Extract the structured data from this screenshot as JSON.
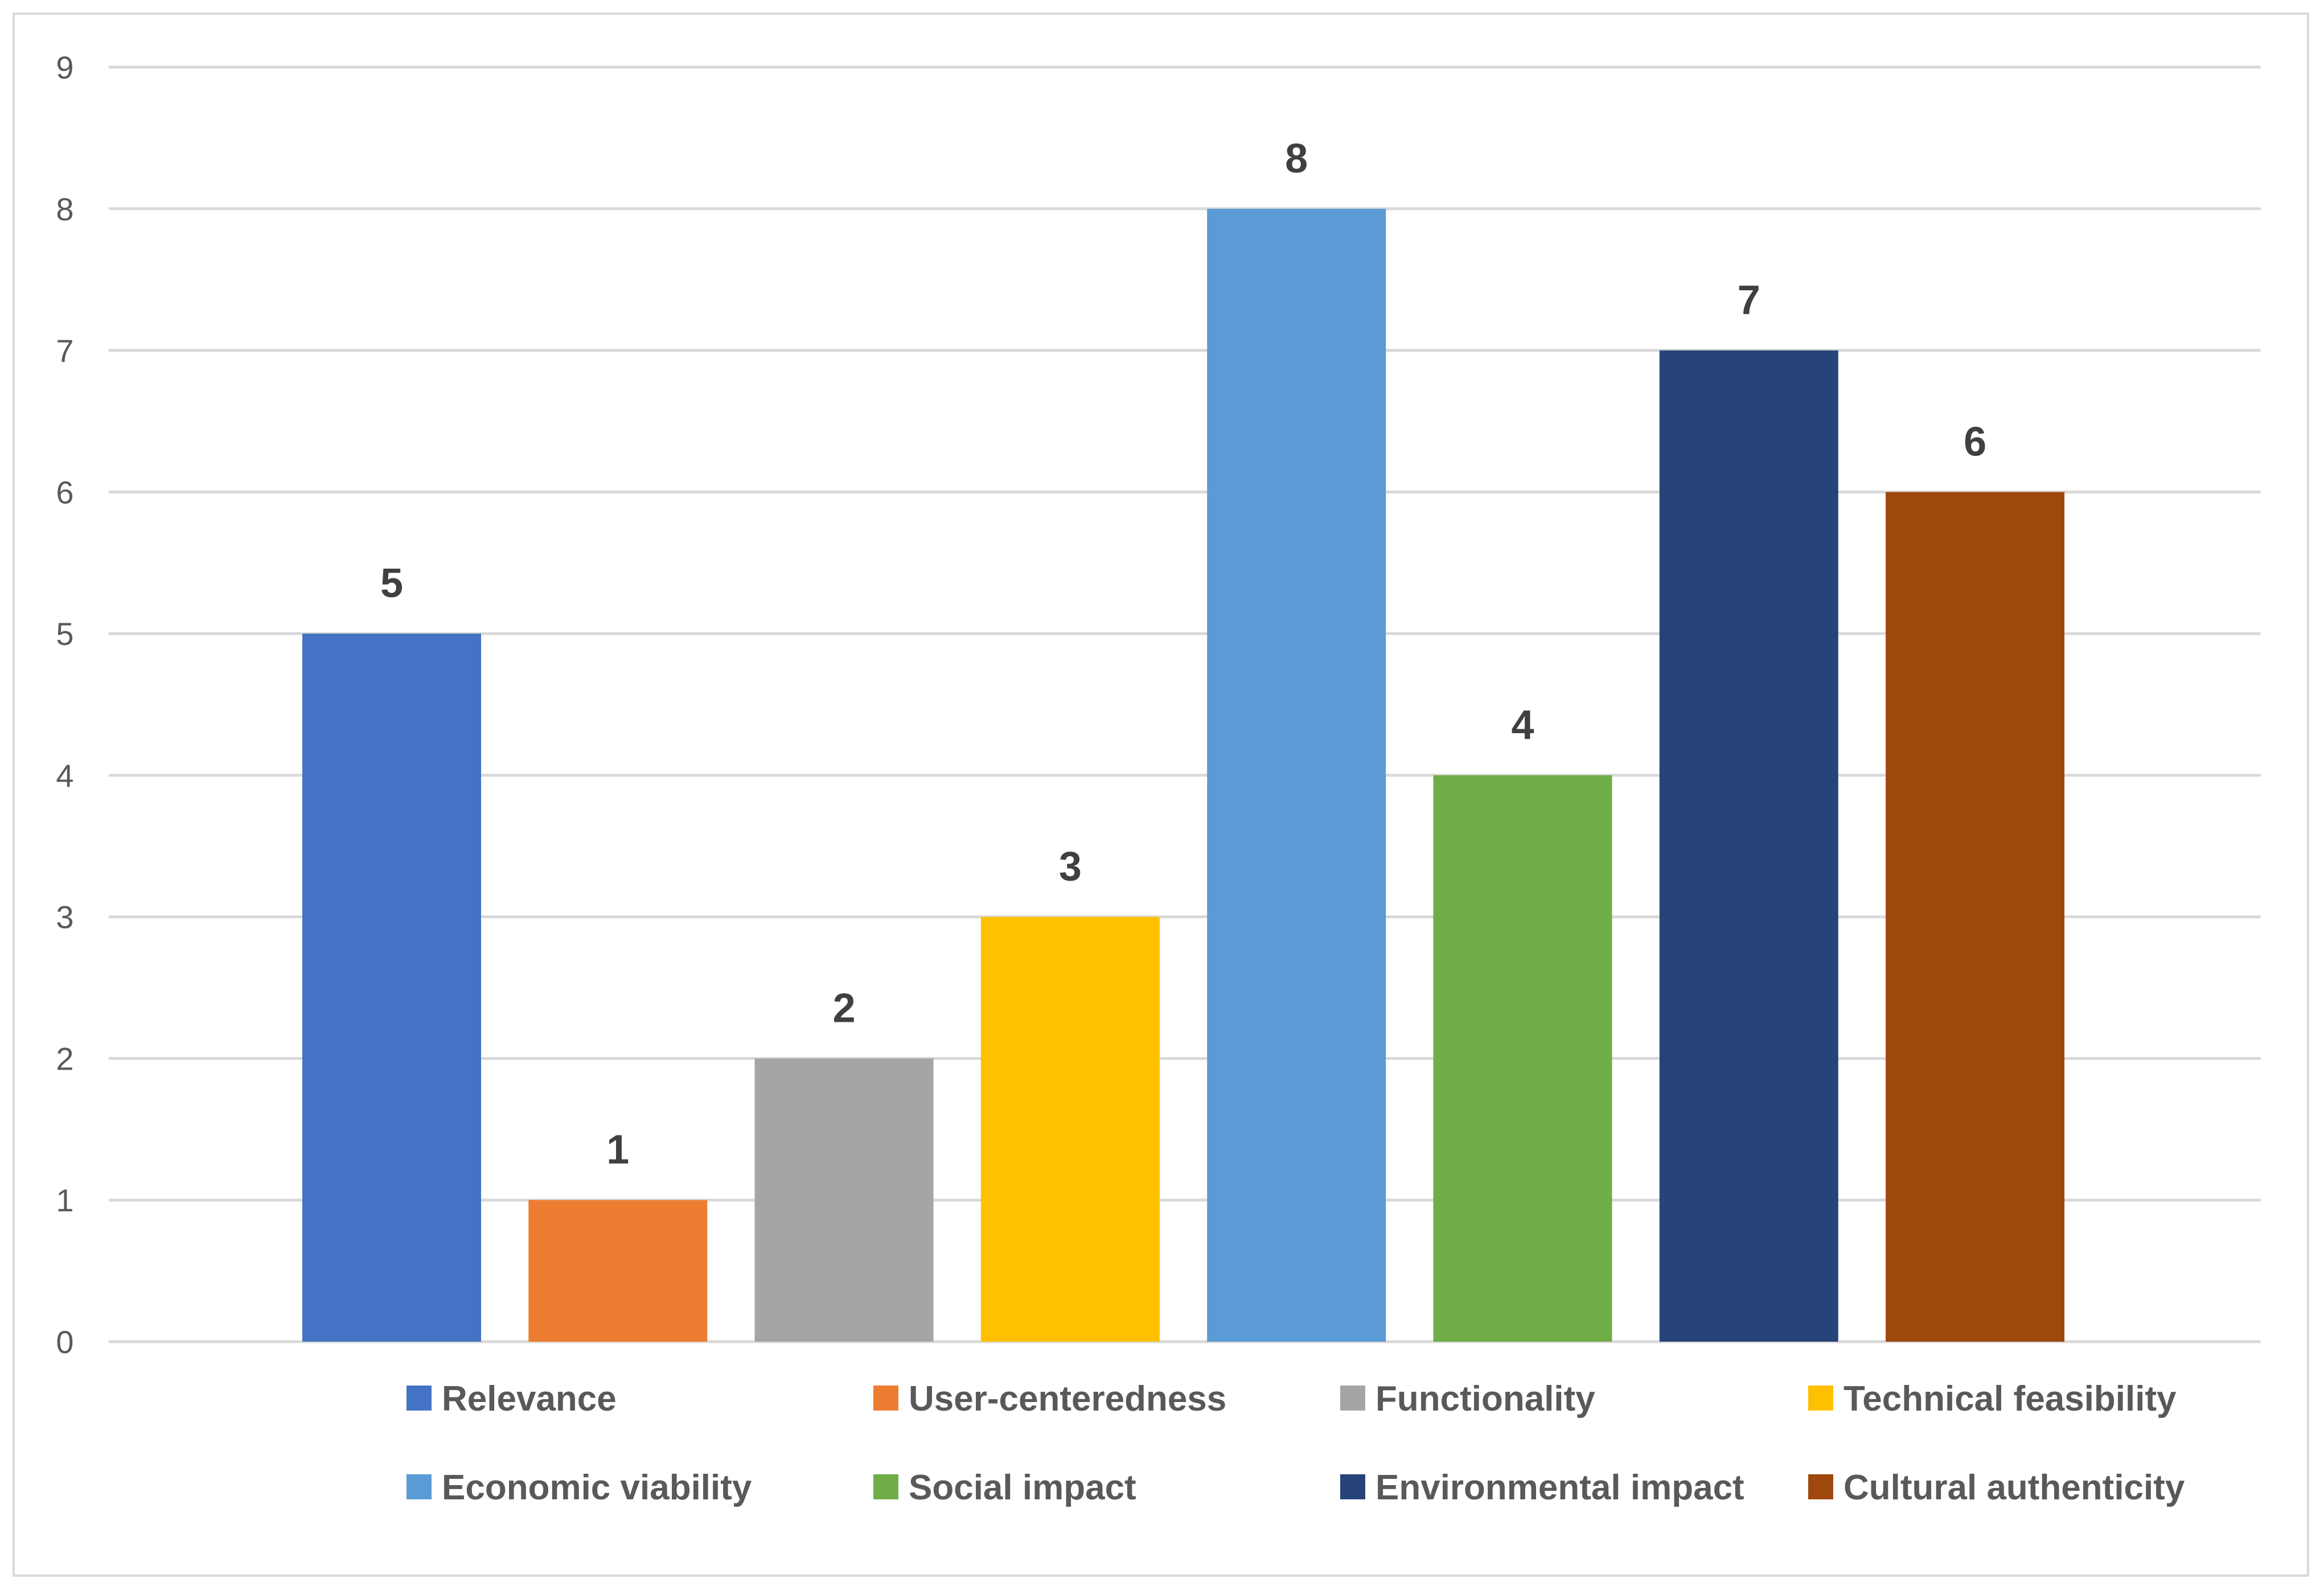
{
  "chart_data": {
    "type": "bar",
    "title": "",
    "xlabel": "",
    "ylabel": "",
    "ylim": [
      0,
      9
    ],
    "yticks": [
      0,
      1,
      2,
      3,
      4,
      5,
      6,
      7,
      8,
      9
    ],
    "grid": true,
    "legend_position": "bottom",
    "categories": [
      "Relevance",
      "User-centeredness",
      "Functionality",
      "Technical feasibility",
      "Economic viability",
      "Social impact",
      "Environmental impact",
      "Cultural authenticity"
    ],
    "values": [
      5,
      1,
      2,
      3,
      8,
      4,
      7,
      6
    ],
    "colors": [
      "#4472c4",
      "#ed7d31",
      "#a5a5a5",
      "#ffc000",
      "#5b9bd5",
      "#70ad47",
      "#264478",
      "#9e480e"
    ],
    "data_labels": [
      "5",
      "1",
      "2",
      "3",
      "8",
      "4",
      "7",
      "6"
    ]
  }
}
